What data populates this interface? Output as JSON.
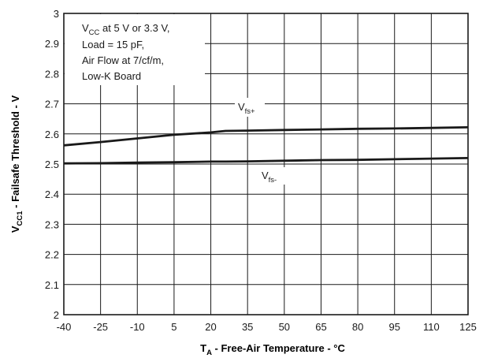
{
  "chart_data": {
    "type": "line",
    "x": [
      -40,
      -25,
      -10,
      5,
      20,
      26,
      35,
      50,
      65,
      80,
      95,
      110,
      125
    ],
    "series": [
      {
        "name": "V_fs+",
        "label_main": "V",
        "label_sub": "fs+",
        "values": [
          2.562,
          2.573,
          2.585,
          2.597,
          2.605,
          2.61,
          2.611,
          2.613,
          2.615,
          2.617,
          2.618,
          2.62,
          2.622
        ]
      },
      {
        "name": "V_fs-",
        "label_main": "V",
        "label_sub": "fs-",
        "values": [
          2.502,
          2.503,
          2.505,
          2.506,
          2.508,
          2.508,
          2.509,
          2.511,
          2.513,
          2.514,
          2.516,
          2.518,
          2.52
        ]
      }
    ],
    "xlim": [
      -40,
      125
    ],
    "ylim": [
      2,
      3
    ],
    "x_ticks": [
      -40,
      -25,
      -10,
      5,
      20,
      35,
      50,
      65,
      80,
      95,
      110,
      125
    ],
    "x_tick_labels": [
      "-40",
      "-25",
      "-10",
      "5",
      "20",
      "35",
      "50",
      "65",
      "80",
      "95",
      "110",
      "125"
    ],
    "y_ticks": [
      2,
      2.1,
      2.2,
      2.3,
      2.4,
      2.5,
      2.6,
      2.7,
      2.8,
      2.9,
      3
    ],
    "y_tick_labels": [
      "2",
      "2.1",
      "2.2",
      "2.3",
      "2.4",
      "2.5",
      "2.6",
      "2.7",
      "2.8",
      "2.9",
      "3"
    ],
    "xlabel": {
      "main": "T",
      "sub": "A",
      "rest": " - Free-Air Temperature - °C"
    },
    "ylabel": {
      "main": "V",
      "sub": "CC1",
      "rest": " - Failsafe Threshold - V"
    },
    "annotation": {
      "line1_main": "V",
      "line1_sub": "CC",
      "line1_rest": " at 5 V or 3.3 V,",
      "line2": "Load = 15 pF,",
      "line3": "Air Flow at 7/cf/m,",
      "line4": "Low-K Board"
    },
    "grid": true,
    "colors": {
      "line": "#1a1a1a",
      "grid": "#1a1a1a"
    }
  }
}
